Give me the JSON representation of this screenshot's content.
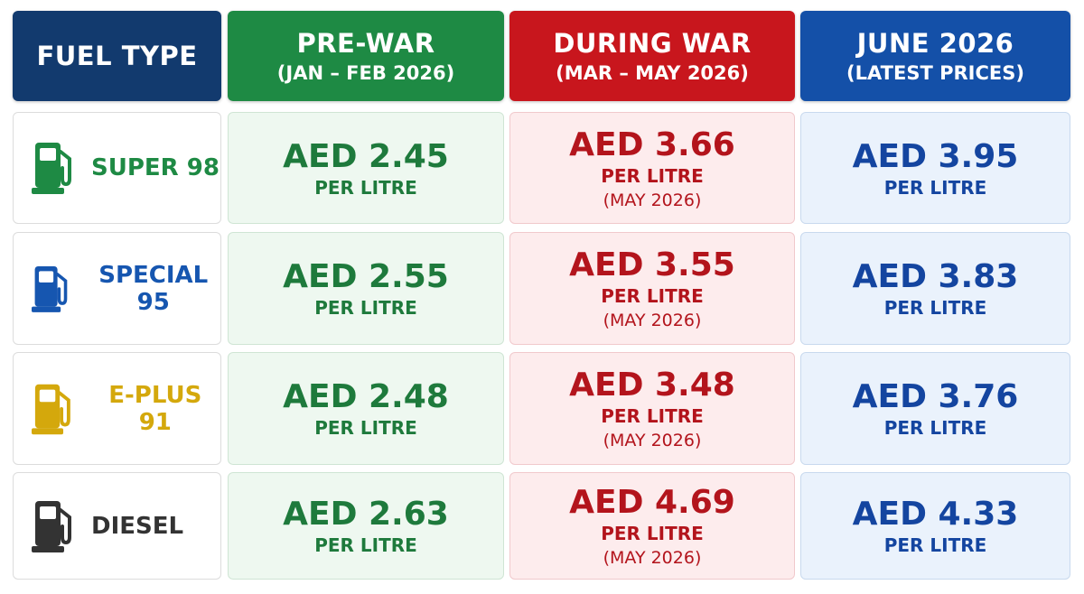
{
  "header": {
    "columns": [
      {
        "title": "FUEL TYPE"
      },
      {
        "title": "PRE-WAR",
        "subtitle": "(JAN – FEB 2026)"
      },
      {
        "title": "DURING WAR",
        "subtitle": "(MAR – MAY 2026)"
      },
      {
        "title": "JUNE 2026",
        "subtitle": "(LATEST PRICES)"
      }
    ]
  },
  "rows": [
    {
      "fuel": "SUPER 98",
      "prices": [
        {
          "price": "AED 2.45",
          "unit": "PER LITRE"
        },
        {
          "price": "AED 3.66",
          "unit": "PER LITRE",
          "note": "(MAY 2026)"
        },
        {
          "price": "AED 3.95",
          "unit": "PER LITRE"
        }
      ]
    },
    {
      "fuel": "SPECIAL 95",
      "prices": [
        {
          "price": "AED 2.55",
          "unit": "PER LITRE"
        },
        {
          "price": "AED 3.55",
          "unit": "PER LITRE",
          "note": "(MAY 2026)"
        },
        {
          "price": "AED 3.83",
          "unit": "PER LITRE"
        }
      ]
    },
    {
      "fuel": "E-PLUS 91",
      "prices": [
        {
          "price": "AED 2.48",
          "unit": "PER LITRE"
        },
        {
          "price": "AED 3.48",
          "unit": "PER LITRE",
          "note": "(MAY 2026)"
        },
        {
          "price": "AED 3.76",
          "unit": "PER LITRE"
        }
      ]
    },
    {
      "fuel": "DIESEL",
      "prices": [
        {
          "price": "AED 2.63",
          "unit": "PER LITRE"
        },
        {
          "price": "AED 4.69",
          "unit": "PER LITRE",
          "note": "(MAY 2026)"
        },
        {
          "price": "AED 4.33",
          "unit": "PER LITRE"
        }
      ]
    }
  ]
}
